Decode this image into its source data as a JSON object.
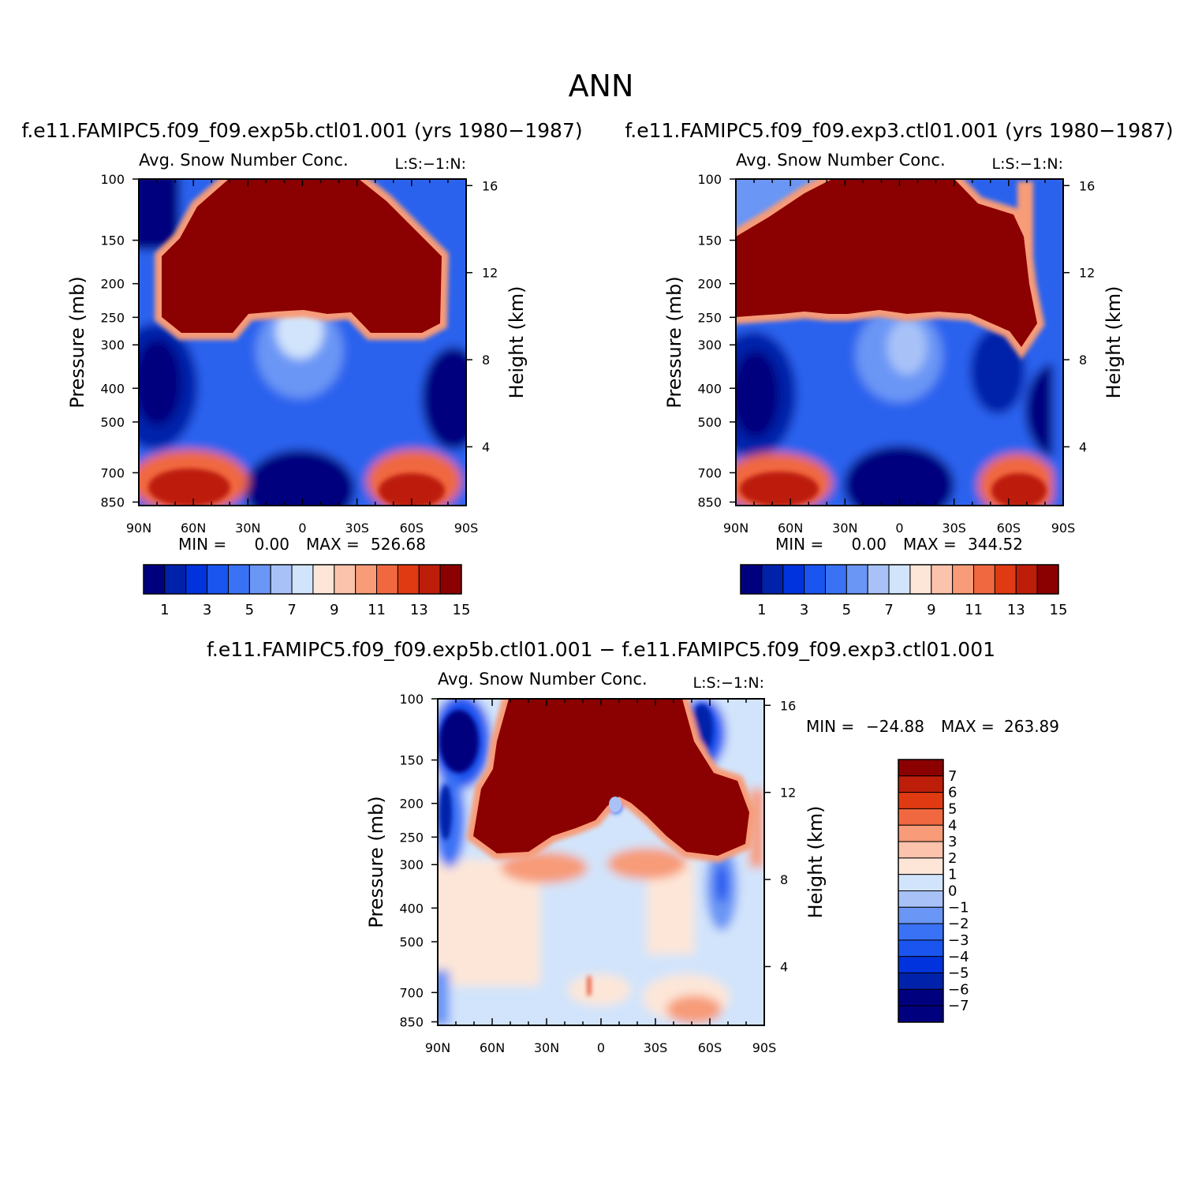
{
  "figure": {
    "title": "ANN"
  },
  "colors": {
    "abs_scale": [
      "#00007f",
      "#0022aa",
      "#0033dd",
      "#1a55f0",
      "#3a72f5",
      "#6a96f5",
      "#a8c2f8",
      "#d2e4fb",
      "#fde6d8",
      "#fbc3ab",
      "#f79b78",
      "#f0683f",
      "#e03a12",
      "#bd1e0a",
      "#8b0000"
    ],
    "diff_scale": [
      "#00007f",
      "#0022aa",
      "#0033dd",
      "#1a55f0",
      "#3a72f5",
      "#6a96f5",
      "#a8c2f8",
      "#d2e4fb",
      "#fde6d8",
      "#fbc3ab",
      "#f79b78",
      "#f0683f",
      "#e03a12",
      "#bd1e0a",
      "#8b0000"
    ]
  },
  "chart_data": [
    {
      "type": "heatmap",
      "panel": "exp5b",
      "case_title": "f.e11.FAMIPC5.f09_f09.exp5b.ctl01.001 (yrs 1980−1987)",
      "title": "Avg. Snow Number Conc.",
      "title_right": "L:S:−1:N:",
      "ylabel": "Pressure (mb)",
      "ylabel_right": "Height (km)",
      "x_ticks": [
        "90N",
        "60N",
        "30N",
        "0",
        "30S",
        "60S",
        "90S"
      ],
      "y_ticks": [
        "100",
        "150",
        "200",
        "250",
        "300",
        "400",
        "500",
        "700",
        "850"
      ],
      "y_right_ticks": [
        "16",
        "12",
        "8",
        "4"
      ],
      "min_max": {
        "min_label": "MIN =",
        "min": "0.00",
        "max_label": "MAX =",
        "max": "526.68"
      },
      "colorbar_labels": [
        "1",
        "3",
        "5",
        "7",
        "9",
        "11",
        "13",
        "15"
      ],
      "colorbar_levels": [
        1,
        2,
        3,
        4,
        5,
        6,
        7,
        8,
        9,
        10,
        11,
        12,
        13,
        14
      ],
      "xlim": [
        90,
        -90
      ],
      "ylim": [
        100,
        850
      ]
    },
    {
      "type": "heatmap",
      "panel": "exp3",
      "case_title": "f.e11.FAMIPC5.f09_f09.exp3.ctl01.001 (yrs 1980−1987)",
      "title": "Avg. Snow Number Conc.",
      "title_right": "L:S:−1:N:",
      "ylabel": "Pressure (mb)",
      "ylabel_right": "Height (km)",
      "x_ticks": [
        "90N",
        "60N",
        "30N",
        "0",
        "30S",
        "60S",
        "90S"
      ],
      "y_ticks": [
        "100",
        "150",
        "200",
        "250",
        "300",
        "400",
        "500",
        "700",
        "850"
      ],
      "y_right_ticks": [
        "16",
        "12",
        "8",
        "4"
      ],
      "min_max": {
        "min_label": "MIN =",
        "min": "0.00",
        "max_label": "MAX =",
        "max": "344.52"
      },
      "colorbar_labels": [
        "1",
        "3",
        "5",
        "7",
        "9",
        "11",
        "13",
        "15"
      ],
      "colorbar_levels": [
        1,
        2,
        3,
        4,
        5,
        6,
        7,
        8,
        9,
        10,
        11,
        12,
        13,
        14
      ],
      "xlim": [
        90,
        -90
      ],
      "ylim": [
        100,
        850
      ]
    },
    {
      "type": "heatmap",
      "panel": "difference",
      "case_title": "f.e11.FAMIPC5.f09_f09.exp5b.ctl01.001 − f.e11.FAMIPC5.f09_f09.exp3.ctl01.001",
      "title": "Avg. Snow Number Conc.",
      "title_right": "L:S:−1:N:",
      "ylabel": "Pressure (mb)",
      "ylabel_right": "Height (km)",
      "x_ticks": [
        "90N",
        "60N",
        "30N",
        "0",
        "30S",
        "60S",
        "90S"
      ],
      "y_ticks": [
        "100",
        "150",
        "200",
        "250",
        "300",
        "400",
        "500",
        "700",
        "850"
      ],
      "y_right_ticks": [
        "16",
        "12",
        "8",
        "4"
      ],
      "min_max": {
        "min_label": "MIN =",
        "min": "−24.88",
        "max_label": "MAX =",
        "max": "263.89"
      },
      "colorbar_labels": [
        "7",
        "6",
        "5",
        "4",
        "3",
        "2",
        "1",
        "0",
        "−1",
        "−2",
        "−3",
        "−4",
        "−5",
        "−6",
        "−7"
      ],
      "colorbar_levels": [
        7,
        6,
        5,
        4,
        3,
        2,
        1,
        0,
        -1,
        -2,
        -3,
        -4,
        -5,
        -6,
        -7
      ],
      "xlim": [
        90,
        -90
      ],
      "ylim": [
        100,
        850
      ]
    }
  ]
}
